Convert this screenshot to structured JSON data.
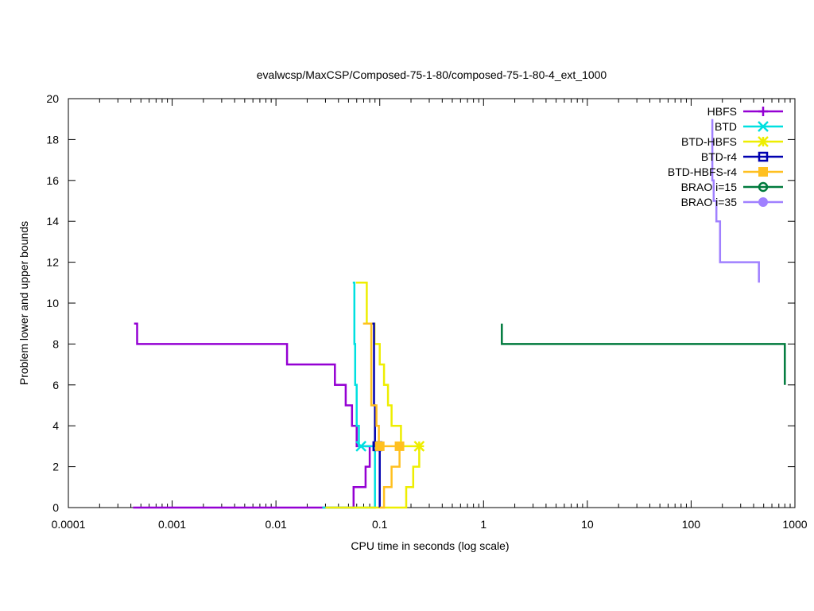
{
  "chart_data": {
    "type": "line",
    "title": "evalwcsp/MaxCSP/Composed-75-1-80/composed-75-1-80-4_ext_1000",
    "xlabel": "CPU time in seconds (log scale)",
    "ylabel": "Problem lower and upper bounds",
    "xscale": "log",
    "xlim": [
      0.0001,
      1000
    ],
    "ylim": [
      0,
      20
    ],
    "xticks": [
      0.0001,
      0.001,
      0.01,
      0.1,
      1,
      10,
      100,
      1000
    ],
    "xtick_labels": [
      "0.0001",
      "0.001",
      "0.01",
      "0.1",
      "1",
      "10",
      "100",
      "1000"
    ],
    "yticks": [
      0,
      2,
      4,
      6,
      8,
      10,
      12,
      14,
      16,
      18,
      20
    ],
    "ytick_labels": [
      "0",
      "2",
      "4",
      "6",
      "8",
      "10",
      "12",
      "14",
      "16",
      "18",
      "20"
    ],
    "grid": false,
    "legend_position": "top-right",
    "series": [
      {
        "name": "HBFS",
        "color": "#9400d3",
        "marker": "plus",
        "upper": [
          [
            0.00043,
            9
          ],
          [
            0.00046,
            9
          ],
          [
            0.00046,
            8
          ],
          [
            0.0128,
            8
          ],
          [
            0.0128,
            7
          ],
          [
            0.037,
            7
          ],
          [
            0.037,
            6
          ],
          [
            0.047,
            6
          ],
          [
            0.047,
            5
          ],
          [
            0.054,
            5
          ],
          [
            0.054,
            4
          ],
          [
            0.06,
            4
          ],
          [
            0.06,
            3
          ],
          [
            0.064,
            3
          ]
        ],
        "lower": [
          [
            0.00042,
            0
          ],
          [
            0.056,
            0
          ],
          [
            0.056,
            1
          ],
          [
            0.073,
            1
          ],
          [
            0.073,
            2
          ],
          [
            0.08,
            2
          ],
          [
            0.08,
            3
          ],
          [
            0.064,
            3
          ]
        ],
        "markers": []
      },
      {
        "name": "BTD",
        "color": "#00e0e0",
        "marker": "cross",
        "upper": [
          [
            0.055,
            11
          ],
          [
            0.057,
            11
          ],
          [
            0.057,
            8
          ],
          [
            0.058,
            8
          ],
          [
            0.058,
            6
          ],
          [
            0.06,
            6
          ],
          [
            0.06,
            4
          ],
          [
            0.063,
            4
          ],
          [
            0.063,
            3
          ],
          [
            0.066,
            3
          ]
        ],
        "lower": [
          [
            0.028,
            0
          ],
          [
            0.09,
            0
          ],
          [
            0.09,
            3
          ],
          [
            0.066,
            3
          ]
        ],
        "markers": [
          [
            0.066,
            3
          ]
        ]
      },
      {
        "name": "BTD-HBFS",
        "color": "#eeee00",
        "marker": "star",
        "upper": [
          [
            0.059,
            11
          ],
          [
            0.075,
            11
          ],
          [
            0.075,
            9
          ],
          [
            0.089,
            9
          ],
          [
            0.089,
            8
          ],
          [
            0.1,
            8
          ],
          [
            0.1,
            7
          ],
          [
            0.11,
            7
          ],
          [
            0.11,
            6
          ],
          [
            0.12,
            6
          ],
          [
            0.12,
            5
          ],
          [
            0.13,
            5
          ],
          [
            0.13,
            4
          ],
          [
            0.16,
            4
          ],
          [
            0.16,
            3
          ],
          [
            0.24,
            3
          ]
        ],
        "lower": [
          [
            0.03,
            0
          ],
          [
            0.18,
            0
          ],
          [
            0.18,
            1
          ],
          [
            0.21,
            1
          ],
          [
            0.21,
            2
          ],
          [
            0.24,
            2
          ],
          [
            0.24,
            3
          ]
        ],
        "markers": [
          [
            0.24,
            3
          ]
        ]
      },
      {
        "name": "BTD-r4",
        "color": "#0000b0",
        "marker": "open-square",
        "upper": [
          [
            0.085,
            9
          ],
          [
            0.088,
            9
          ],
          [
            0.088,
            5
          ],
          [
            0.09,
            5
          ],
          [
            0.09,
            3
          ],
          [
            0.095,
            3
          ]
        ],
        "lower": [
          [
            0.1,
            0
          ],
          [
            0.1,
            3
          ],
          [
            0.095,
            3
          ]
        ],
        "markers": [
          [
            0.095,
            3
          ]
        ]
      },
      {
        "name": "BTD-HBFS-r4",
        "color": "#ffc020",
        "marker": "filled-square",
        "upper": [
          [
            0.069,
            9
          ],
          [
            0.083,
            9
          ],
          [
            0.083,
            5
          ],
          [
            0.093,
            5
          ],
          [
            0.093,
            4
          ],
          [
            0.098,
            4
          ],
          [
            0.098,
            3
          ],
          [
            0.155,
            3
          ]
        ],
        "lower": [
          [
            0.1,
            0
          ],
          [
            0.11,
            0
          ],
          [
            0.11,
            1
          ],
          [
            0.13,
            1
          ],
          [
            0.13,
            2
          ],
          [
            0.155,
            2
          ],
          [
            0.155,
            3
          ]
        ],
        "markers": [
          [
            0.1,
            3
          ],
          [
            0.155,
            3
          ]
        ]
      },
      {
        "name": "BRAO i=15",
        "color": "#007a3d",
        "marker": "open-circle",
        "upper": [
          [
            1.5,
            9
          ],
          [
            1.5,
            8
          ],
          [
            800,
            8
          ],
          [
            800,
            6
          ]
        ],
        "lower": [],
        "markers": []
      },
      {
        "name": "BRAO i=35",
        "color": "#a080ff",
        "marker": "filled-circle",
        "upper": [
          [
            160,
            19
          ],
          [
            160,
            16
          ],
          [
            165,
            16
          ],
          [
            165,
            15
          ],
          [
            175,
            15
          ],
          [
            175,
            14
          ],
          [
            190,
            14
          ],
          [
            190,
            12
          ],
          [
            450,
            12
          ],
          [
            450,
            11
          ]
        ],
        "lower": [],
        "markers": []
      }
    ]
  }
}
